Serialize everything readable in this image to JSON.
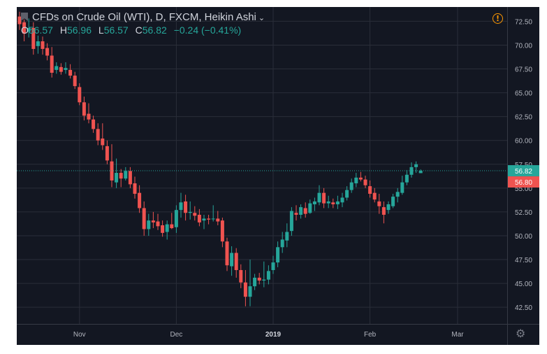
{
  "legend": {
    "title": "CFDs on Crude Oil (WTI), D, FXCM, Heikin Ashi",
    "open_label": "O",
    "open": "56.57",
    "high_label": "H",
    "high": "56.96",
    "low_label": "L",
    "low": "56.57",
    "close_label": "C",
    "close": "56.82",
    "change": "−0.24 (−0.41%)"
  },
  "price_tags": {
    "last": "56.82",
    "prev": "56.80"
  },
  "colors": {
    "background": "#131722",
    "up": "#26a69a",
    "down": "#ef5350",
    "grid": "#2a2e39",
    "text": "#b2b5be",
    "warning": "#ff9800"
  },
  "icons": {
    "warning": "warning-icon",
    "settings": "gear-icon",
    "flag": "flag-icon"
  },
  "chart_data": {
    "type": "candlestick",
    "style": "Heikin Ashi",
    "symbol": "CFDs on Crude Oil (WTI)",
    "interval": "D",
    "source": "FXCM",
    "y_ticks": [
      "72.50",
      "70.00",
      "67.50",
      "65.00",
      "62.50",
      "60.00",
      "57.50",
      "55.00",
      "52.50",
      "50.00",
      "47.50",
      "45.00",
      "42.50"
    ],
    "ylim": [
      40.75,
      74.0
    ],
    "x_ticks": [
      {
        "label": "Nov",
        "bar": 13,
        "bold": false
      },
      {
        "label": "Dec",
        "bar": 34,
        "bold": false
      },
      {
        "label": "2019",
        "bar": 55,
        "bold": true
      },
      {
        "label": "Feb",
        "bar": 76,
        "bold": false
      },
      {
        "label": "Mar",
        "bar": 95,
        "bold": false
      }
    ],
    "bars_visible": 100,
    "last_price": 56.82,
    "grid": true,
    "candles": [
      [
        73.0,
        73.5,
        71.6,
        72.2
      ],
      [
        72.4,
        72.7,
        70.4,
        71.2
      ],
      [
        71.4,
        72.8,
        70.8,
        71.8
      ],
      [
        71.8,
        72.4,
        69.0,
        69.6
      ],
      [
        69.9,
        71.0,
        69.1,
        70.4
      ],
      [
        70.4,
        70.9,
        69.0,
        69.6
      ],
      [
        69.7,
        70.2,
        68.4,
        68.9
      ],
      [
        68.9,
        69.8,
        66.6,
        67.1
      ],
      [
        67.4,
        68.2,
        67.0,
        67.8
      ],
      [
        67.7,
        68.1,
        66.9,
        67.2
      ],
      [
        67.4,
        68.2,
        67.0,
        67.6
      ],
      [
        67.4,
        68.0,
        66.5,
        66.8
      ],
      [
        66.8,
        67.2,
        65.4,
        65.7
      ],
      [
        65.6,
        66.0,
        63.7,
        64.0
      ],
      [
        64.0,
        64.6,
        62.1,
        62.6
      ],
      [
        62.8,
        63.9,
        61.8,
        62.2
      ],
      [
        62.2,
        62.6,
        60.8,
        61.2
      ],
      [
        61.2,
        61.8,
        59.5,
        60.0
      ],
      [
        60.2,
        61.8,
        59.0,
        59.5
      ],
      [
        59.4,
        60.0,
        57.5,
        57.9
      ],
      [
        57.8,
        59.6,
        55.1,
        55.8
      ],
      [
        55.6,
        58.1,
        55.0,
        56.6
      ],
      [
        56.6,
        57.0,
        55.1,
        56.0
      ],
      [
        56.0,
        57.2,
        55.8,
        56.8
      ],
      [
        56.8,
        57.2,
        55.0,
        55.4
      ],
      [
        55.5,
        56.2,
        53.9,
        54.4
      ],
      [
        54.5,
        55.3,
        52.4,
        52.9
      ],
      [
        52.9,
        53.6,
        50.0,
        50.7
      ],
      [
        50.7,
        52.3,
        50.0,
        51.6
      ],
      [
        51.6,
        52.5,
        50.8,
        51.4
      ],
      [
        51.5,
        52.3,
        50.6,
        51.0
      ],
      [
        51.1,
        51.6,
        49.9,
        50.3
      ],
      [
        50.4,
        51.6,
        49.6,
        51.2
      ],
      [
        51.2,
        52.4,
        50.7,
        50.8
      ],
      [
        50.9,
        53.2,
        50.3,
        52.7
      ],
      [
        52.7,
        54.5,
        51.9,
        53.5
      ],
      [
        53.6,
        54.3,
        51.6,
        52.4
      ],
      [
        52.4,
        53.6,
        51.7,
        52.5
      ],
      [
        52.4,
        53.1,
        51.6,
        52.1
      ],
      [
        52.2,
        52.8,
        51.0,
        51.4
      ],
      [
        51.6,
        52.2,
        50.7,
        51.8
      ],
      [
        51.8,
        52.2,
        51.2,
        51.7
      ],
      [
        51.8,
        53.2,
        51.5,
        51.8
      ],
      [
        51.8,
        52.6,
        51.1,
        51.5
      ],
      [
        51.6,
        51.9,
        48.8,
        49.4
      ],
      [
        49.4,
        49.8,
        46.3,
        46.9
      ],
      [
        46.8,
        48.9,
        45.8,
        48.2
      ],
      [
        48.2,
        48.7,
        45.6,
        46.4
      ],
      [
        46.4,
        47.0,
        44.5,
        45.1
      ],
      [
        45.1,
        46.4,
        42.6,
        43.6
      ],
      [
        43.6,
        47.5,
        42.6,
        44.7
      ],
      [
        44.7,
        46.0,
        44.3,
        45.6
      ],
      [
        45.6,
        46.1,
        44.9,
        45.3
      ],
      [
        45.3,
        47.3,
        44.6,
        45.4
      ],
      [
        45.4,
        46.9,
        44.9,
        46.3
      ],
      [
        46.4,
        47.9,
        46.0,
        47.2
      ],
      [
        47.2,
        49.4,
        46.7,
        48.8
      ],
      [
        48.8,
        50.4,
        48.2,
        49.6
      ],
      [
        49.5,
        51.3,
        48.8,
        50.4
      ],
      [
        50.5,
        53.0,
        50.0,
        52.6
      ],
      [
        52.4,
        53.2,
        51.6,
        52.2
      ],
      [
        52.2,
        53.3,
        51.8,
        53.0
      ],
      [
        52.9,
        53.5,
        51.9,
        52.3
      ],
      [
        52.4,
        53.8,
        52.3,
        53.4
      ],
      [
        53.3,
        54.0,
        52.6,
        53.6
      ],
      [
        53.5,
        55.3,
        53.2,
        54.5
      ],
      [
        54.5,
        55.0,
        52.9,
        53.4
      ],
      [
        53.4,
        54.2,
        52.9,
        53.6
      ],
      [
        53.5,
        53.9,
        52.9,
        53.3
      ],
      [
        53.3,
        54.2,
        52.8,
        53.6
      ],
      [
        53.5,
        54.5,
        53.0,
        54.0
      ],
      [
        54.0,
        55.2,
        53.7,
        54.8
      ],
      [
        54.8,
        56.0,
        54.5,
        55.6
      ],
      [
        55.5,
        56.6,
        55.1,
        56.1
      ],
      [
        56.1,
        56.7,
        55.7,
        55.9
      ],
      [
        55.9,
        56.3,
        55.0,
        55.3
      ],
      [
        55.2,
        55.8,
        54.0,
        54.4
      ],
      [
        54.5,
        55.0,
        53.5,
        53.8
      ],
      [
        53.6,
        54.4,
        52.3,
        53.1
      ],
      [
        53.0,
        53.6,
        51.3,
        52.2
      ],
      [
        52.7,
        53.6,
        52.3,
        53.3
      ],
      [
        53.1,
        54.4,
        52.9,
        54.1
      ],
      [
        54.1,
        55.0,
        53.5,
        54.6
      ],
      [
        54.5,
        56.3,
        54.3,
        55.6
      ],
      [
        55.6,
        56.9,
        55.3,
        56.4
      ],
      [
        56.4,
        57.7,
        56.1,
        57.2
      ],
      [
        57.2,
        57.8,
        56.6,
        57.5
      ],
      [
        56.57,
        56.96,
        56.57,
        56.82
      ]
    ]
  }
}
